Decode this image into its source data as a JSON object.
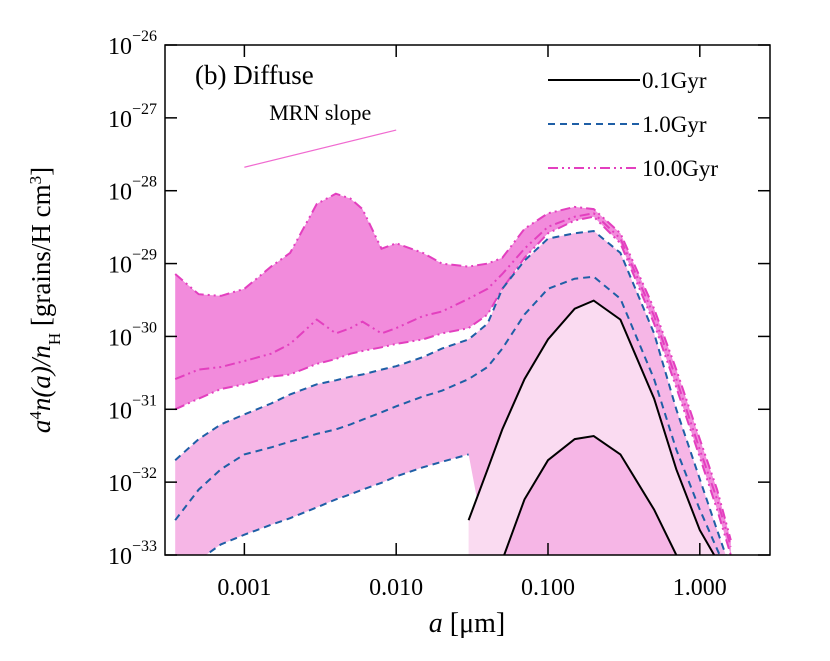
{
  "chart_data": {
    "type": "band-line",
    "title": "(b) Diffuse",
    "x_label": [
      "a",
      " [μm]"
    ],
    "y_label": [
      "a",
      "4",
      "n(a)/n",
      "H",
      " [grains/H cm",
      "3",
      "]"
    ],
    "x_log": true,
    "y_log": true,
    "xlim": [
      0.0003,
      2.9
    ],
    "ylim": [
      1e-33,
      1e-26
    ],
    "xticks": [
      {
        "value": 0.001,
        "label": "0.001"
      },
      {
        "value": 0.01,
        "label": "0.010"
      },
      {
        "value": 0.1,
        "label": "0.100"
      },
      {
        "value": 1,
        "label": "1.000"
      }
    ],
    "yticks": [
      {
        "value": 1e-33,
        "label": "10",
        "exponent": "−33"
      },
      {
        "value": 1e-32,
        "label": "10",
        "exponent": "−32"
      },
      {
        "value": 1e-31,
        "label": "10",
        "exponent": "−31"
      },
      {
        "value": 1e-30,
        "label": "10",
        "exponent": "−30"
      },
      {
        "value": 1e-29,
        "label": "10",
        "exponent": "−29"
      },
      {
        "value": 1e-28,
        "label": "10",
        "exponent": "−28"
      },
      {
        "value": 1e-27,
        "label": "10",
        "exponent": "−27"
      },
      {
        "value": 1e-26,
        "label": "10",
        "exponent": "−26"
      }
    ],
    "legend": "top-right",
    "annotation": {
      "text": "MRN slope",
      "x": [
        0.001,
        0.01
      ],
      "y": [
        2.1e-28,
        6.8e-28
      ],
      "color": "#f06ad0",
      "text_color": "#555555"
    },
    "x": [
      0.00035,
      0.0005,
      0.0007,
      0.001,
      0.0015,
      0.002,
      0.003,
      0.004,
      0.005,
      0.006,
      0.008,
      0.01,
      0.015,
      0.02,
      0.03,
      0.04,
      0.05,
      0.07,
      0.1,
      0.15,
      0.2,
      0.3,
      0.5,
      0.7,
      1.0,
      1.3,
      1.6
    ],
    "series": [
      {
        "name": "10.0Gyr",
        "color": "#e33fbf",
        "fill": "#f28bdc",
        "line_style": "dashdotdot",
        "upper": [
          7.2e-30,
          3.8e-30,
          3.6e-30,
          4.5e-30,
          9.1e-30,
          1.4e-29,
          6.6e-29,
          9.1e-29,
          7.8e-29,
          5.6e-29,
          1.6e-29,
          1.9e-29,
          1.4e-29,
          1e-29,
          9.1e-30,
          1e-29,
          1.2e-29,
          3e-29,
          4.9e-29,
          6e-29,
          5.6e-29,
          2.6e-29,
          2.4e-30,
          3.5e-31,
          3.9e-32,
          7.9e-33,
          1.6e-33
        ],
        "middle": [
          2.6e-31,
          3.5e-31,
          3.8e-31,
          4.6e-31,
          5.8e-31,
          7.9e-31,
          1.7e-30,
          1.1e-30,
          1.3e-30,
          1.6e-30,
          1.1e-30,
          1.3e-30,
          1.9e-30,
          2.2e-30,
          3.3e-30,
          4.5e-30,
          7.2e-30,
          1.6e-29,
          3.2e-29,
          4.4e-29,
          4.9e-29,
          2.2e-29,
          1.9e-30,
          2.6e-31,
          2.8e-32,
          5.8e-33,
          1.3e-33
        ],
        "lower": [
          1e-31,
          1.4e-31,
          1.9e-31,
          2.2e-31,
          2.8e-31,
          3e-31,
          4.2e-31,
          4.9e-31,
          5.8e-31,
          6.3e-31,
          7.1e-31,
          7.9e-31,
          9.1e-31,
          1.1e-30,
          1.3e-30,
          2e-30,
          4.5e-30,
          1.2e-29,
          2.6e-29,
          3.9e-29,
          4.4e-29,
          1.9e-29,
          1.5e-30,
          2e-31,
          2.2e-32,
          4.2e-33,
          1e-33
        ]
      },
      {
        "name": "1.0Gyr",
        "color": "#1f5fa6",
        "fill": "#f6b6e6",
        "line_style": "dashed",
        "upper": [
          2e-32,
          3.9e-32,
          6.2e-32,
          8.5e-32,
          1.2e-31,
          1.6e-31,
          2.2e-31,
          2.5e-31,
          2.8e-31,
          3e-31,
          3.5e-31,
          3.9e-31,
          5.2e-31,
          6.8e-31,
          9.1e-31,
          1.5e-30,
          4.5e-30,
          1.1e-29,
          2.2e-29,
          2.6e-29,
          2.8e-29,
          1.4e-29,
          1.1e-30,
          1e-31,
          1.1e-32,
          2.2e-33,
          6.3e-34
        ],
        "middle": [
          3e-33,
          7.9e-33,
          1.5e-32,
          2.4e-32,
          3e-32,
          3.6e-32,
          4.6e-32,
          5.3e-32,
          6.2e-32,
          7.2e-32,
          9.1e-32,
          1.1e-31,
          1.5e-31,
          1.8e-31,
          2.6e-31,
          3.8e-31,
          6.8e-31,
          2e-30,
          4.5e-30,
          6.2e-30,
          6.6e-30,
          3.3e-30,
          2.6e-31,
          2.8e-32,
          4.2e-33,
          1.2e-33,
          4.5e-34
        ],
        "lower": [
          2.4e-34,
          8.5e-34,
          1.4e-33,
          1.9e-33,
          2.6e-33,
          3.2e-33,
          4.5e-33,
          5.8e-33,
          6.8e-33,
          7.9e-33,
          9.8e-33,
          1.2e-32,
          1.6e-32,
          1.9e-32,
          2.4e-32,
          null,
          null,
          null,
          null,
          null,
          null,
          null,
          null,
          null,
          null,
          null,
          null
        ]
      },
      {
        "name": "0.1Gyr",
        "color": "#000000",
        "fill": "#fadbf1",
        "line_style": "solid",
        "upper": [
          null,
          null,
          null,
          null,
          null,
          null,
          null,
          null,
          null,
          null,
          null,
          null,
          null,
          null,
          3e-33,
          1.5e-32,
          5.3e-32,
          2.6e-31,
          9.1e-31,
          2.4e-30,
          3.1e-30,
          1.7e-30,
          1.4e-31,
          1.5e-32,
          2.2e-33,
          8.5e-34,
          null
        ],
        "lower": [
          null,
          null,
          null,
          null,
          null,
          null,
          null,
          null,
          null,
          null,
          null,
          null,
          null,
          null,
          null,
          null,
          8.5e-34,
          5.8e-33,
          2e-32,
          3.9e-32,
          4.3e-32,
          2.4e-32,
          4.2e-33,
          1e-33,
          null,
          null,
          null
        ]
      }
    ]
  }
}
